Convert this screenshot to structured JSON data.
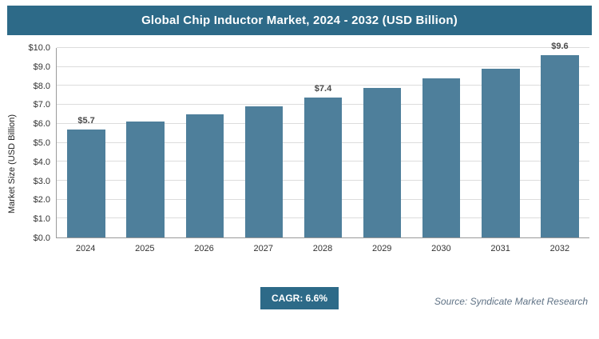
{
  "header": {
    "title": "Global Chip Inductor Market, 2024 - 2032 (USD Billion)"
  },
  "chart_data": {
    "type": "bar",
    "title": "Global Chip Inductor Market, 2024 - 2032 (USD Billion)",
    "categories": [
      "2024",
      "2025",
      "2026",
      "2027",
      "2028",
      "2029",
      "2030",
      "2031",
      "2032"
    ],
    "values": [
      5.7,
      6.1,
      6.5,
      6.9,
      7.4,
      7.9,
      8.4,
      8.9,
      9.6
    ],
    "data_labels": [
      "$5.7",
      "",
      "",
      "",
      "$7.4",
      "",
      "",
      "",
      "$9.6"
    ],
    "xlabel": "",
    "ylabel": "Market Size (USD Billion)",
    "ylim": [
      0,
      10
    ],
    "ytick_step": 1.0,
    "ytick_prefix": "$",
    "grid": true,
    "legend": "none",
    "bar_color": "#4e7f9b",
    "banner_color": "#2d6a88"
  },
  "footer": {
    "cagr_label": "CAGR: 6.6%",
    "source": "Source: Syndicate Market Research"
  }
}
